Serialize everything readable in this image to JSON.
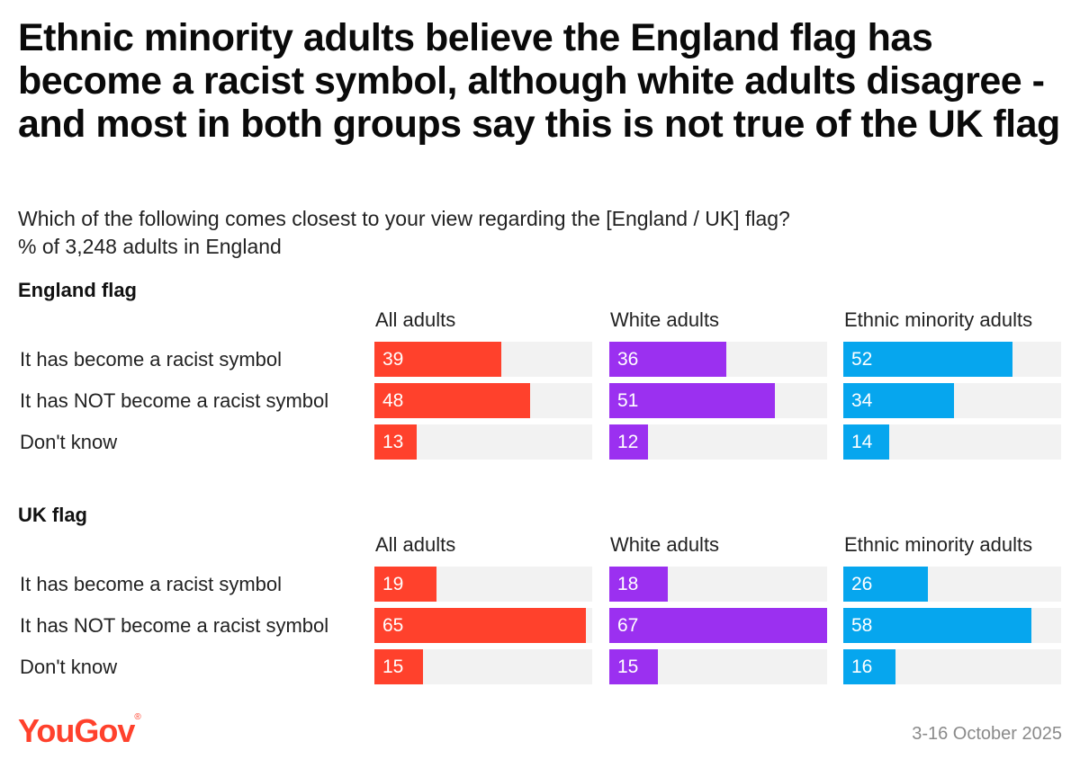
{
  "title": "Ethnic minority adults believe the England flag has become a racist symbol, although white adults disagree - and most in both groups say this is not true of the UK flag",
  "subtitle_line1": "Which of the following comes closest to your view regarding the [England / UK] flag?",
  "subtitle_line2": "% of 3,248 adults in England",
  "brand": "YouGov",
  "brand_mark": "®",
  "date": "3-16 October 2025",
  "colors": {
    "all_adults": "#ff412c",
    "white_adults": "#9b30f0",
    "ethnic_minority_adults": "#06a6ee",
    "track": "#f2f2f2"
  },
  "chart_data": [
    {
      "type": "bar",
      "title": "England flag",
      "categories": [
        "It has become a racist symbol",
        "It has NOT become a racist symbol",
        "Don't know"
      ],
      "series": [
        {
          "name": "All adults",
          "values": [
            39,
            48,
            13
          ]
        },
        {
          "name": "White adults",
          "values": [
            36,
            51,
            12
          ]
        },
        {
          "name": "Ethnic minority adults",
          "values": [
            52,
            34,
            14
          ]
        }
      ],
      "xlim": [
        0,
        67
      ]
    },
    {
      "type": "bar",
      "title": "UK flag",
      "categories": [
        "It has become a racist symbol",
        "It has NOT become a racist symbol",
        "Don't know"
      ],
      "series": [
        {
          "name": "All adults",
          "values": [
            19,
            65,
            15
          ]
        },
        {
          "name": "White adults",
          "values": [
            18,
            67,
            15
          ]
        },
        {
          "name": "Ethnic minority adults",
          "values": [
            26,
            58,
            16
          ]
        }
      ],
      "xlim": [
        0,
        67
      ]
    }
  ]
}
